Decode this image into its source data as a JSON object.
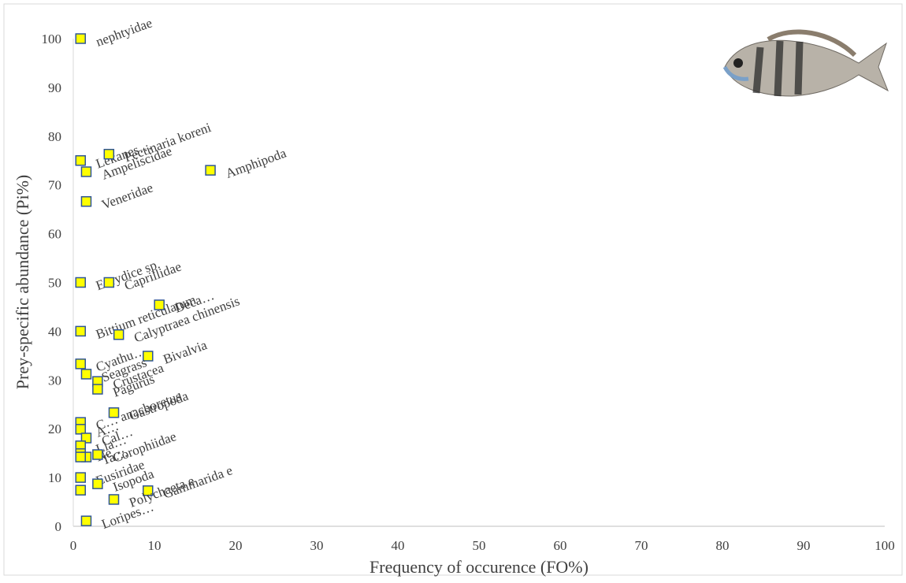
{
  "chart_data": {
    "type": "scatter",
    "xlabel": "Frequency of occurence (FO%)",
    "ylabel": "Prey-specific abundance (Pi%)",
    "x": [
      0.9,
      0.9,
      4.4,
      1.6,
      16.9,
      1.6,
      0.9,
      4.4,
      10.6,
      0.9,
      5.6,
      0.9,
      9.2,
      1.6,
      3.0,
      3.0,
      0.9,
      5.0,
      0.9,
      1.6,
      0.9,
      0.9,
      1.6,
      3.0,
      0.9,
      0.9,
      3.0,
      9.2,
      0.9,
      5.0,
      1.6
    ],
    "values": [
      100,
      75,
      76.3,
      72.7,
      73,
      66.6,
      50,
      50,
      45.4,
      40,
      39.3,
      33.3,
      34.9,
      31.2,
      29.7,
      28.1,
      21.3,
      23.3,
      19.9,
      18.1,
      16.5,
      14.9,
      14.2,
      14.7,
      14.2,
      10,
      8.7,
      7.3,
      7.4,
      5.5,
      1.1
    ],
    "labels": [
      "nephtyidae",
      "Lekanes…",
      "Pectinaria koreni",
      "Ampeliscidae",
      "Amphipoda",
      "Veneridae",
      "Eurydice sp.",
      "Caprillidae",
      "Deca…",
      "Bittium reticulatum",
      "Calyptraea chinensis",
      "Cyathu…",
      "Bivalvia",
      "Seagrass",
      "Crustacea",
      "Pagurus",
      "C… anachoretus",
      "Gastropoda",
      "A…",
      "Cal…",
      "Lia…",
      "Ne…",
      "Ta…",
      "Corophiidae",
      null,
      "Eusiridae",
      "Isopoda",
      "Gammarida e",
      null,
      "Polychaeta e",
      "Loripes…"
    ],
    "marker_color": "#ffff00",
    "marker_edge": "#2f5597",
    "xlim": [
      0,
      100
    ],
    "xticks": [
      0,
      10,
      20,
      30,
      40,
      50,
      60,
      70,
      80,
      90,
      100
    ],
    "ylim": [
      0,
      100
    ],
    "yticks": [
      0,
      10,
      20,
      30,
      40,
      50,
      60,
      70,
      80,
      90,
      100
    ],
    "grid": false
  }
}
